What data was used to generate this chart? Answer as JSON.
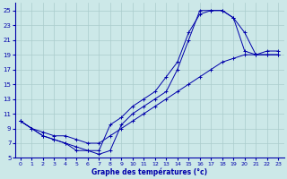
{
  "title": "Graphe des températures (°c)",
  "bg_color": "#cce8e8",
  "grid_color": "#aacccc",
  "line_color": "#0000aa",
  "ylim": [
    5,
    26
  ],
  "xlim": [
    -0.5,
    23.5
  ],
  "yticks": [
    5,
    7,
    9,
    11,
    13,
    15,
    17,
    19,
    21,
    23,
    25
  ],
  "xticks": [
    0,
    1,
    2,
    3,
    4,
    5,
    6,
    7,
    8,
    9,
    10,
    11,
    12,
    13,
    14,
    15,
    16,
    17,
    18,
    19,
    20,
    21,
    22,
    23
  ],
  "line1_x": [
    0,
    1,
    2,
    3,
    4,
    5,
    6,
    7,
    8,
    9,
    10,
    11,
    12,
    13,
    14,
    15,
    16,
    17,
    18,
    19,
    20,
    21,
    22,
    23
  ],
  "line1_y": [
    10,
    9,
    8.5,
    8,
    8,
    7.5,
    7,
    7,
    8,
    9,
    10,
    11,
    12,
    13,
    14,
    15,
    16,
    17,
    18,
    18.5,
    19,
    19,
    19,
    19
  ],
  "line2_x": [
    0,
    1,
    2,
    3,
    4,
    5,
    6,
    7,
    8,
    9,
    10,
    11,
    12,
    13,
    14,
    15,
    16,
    17,
    18,
    19,
    20,
    21,
    22,
    23
  ],
  "line2_y": [
    10,
    9,
    8,
    7.5,
    7,
    6.5,
    6,
    6,
    9.5,
    10.5,
    12,
    13,
    14,
    16,
    18,
    22,
    24.5,
    25,
    25,
    24,
    22,
    19,
    19.5,
    19.5
  ],
  "line3_x": [
    0,
    1,
    2,
    3,
    4,
    5,
    6,
    7,
    8,
    9,
    10,
    11,
    12,
    13,
    14,
    15,
    16,
    17,
    18,
    19,
    20,
    21,
    22,
    23
  ],
  "line3_y": [
    10,
    9,
    8,
    7.5,
    7,
    6,
    6,
    5.5,
    6,
    9.5,
    11,
    12,
    13,
    14,
    17,
    21,
    25,
    25,
    25,
    24,
    19.5,
    19,
    19,
    19
  ]
}
